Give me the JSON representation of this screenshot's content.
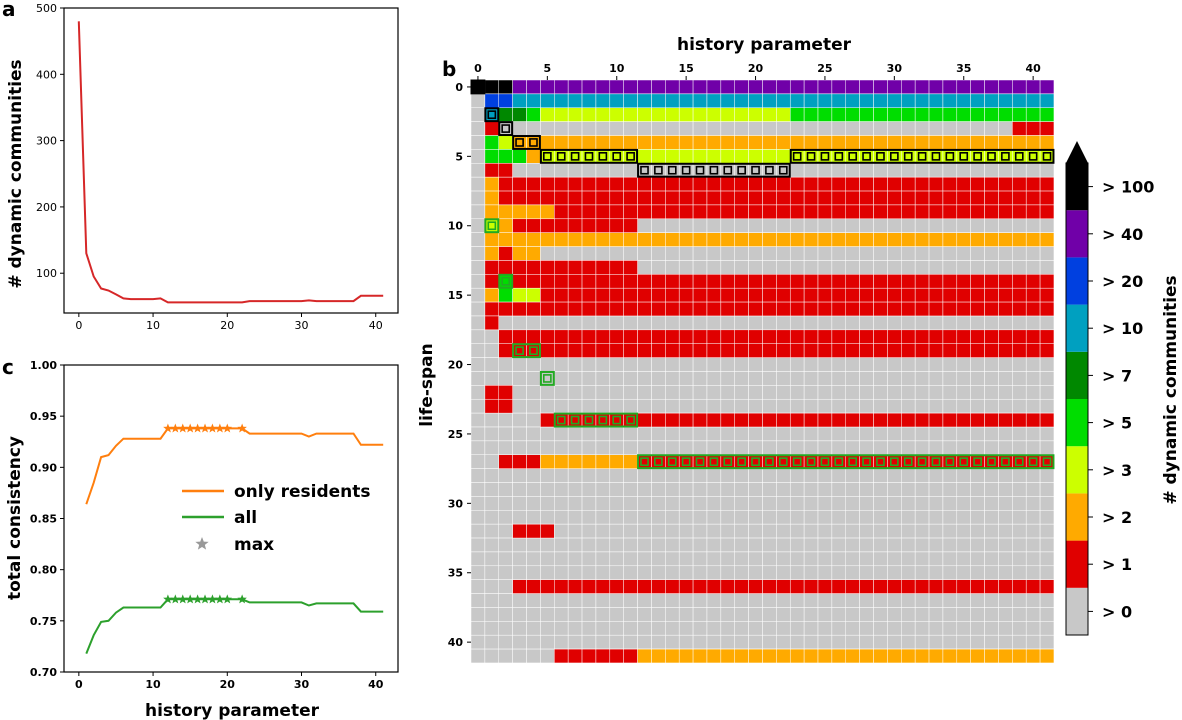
{
  "chart_data": [
    {
      "id": "a",
      "type": "line",
      "panel_label": "a",
      "xlabel": "",
      "ylabel": "# dynamic communities",
      "xlim": [
        -2,
        43
      ],
      "ylim": [
        40,
        500
      ],
      "xticks": [
        0,
        10,
        20,
        30,
        40
      ],
      "yticks": [
        100,
        200,
        300,
        400,
        500
      ],
      "series": [
        {
          "name": "# dynamic communities",
          "color": "#d62728",
          "x": [
            0,
            1,
            2,
            3,
            4,
            5,
            6,
            7,
            8,
            9,
            10,
            11,
            12,
            13,
            14,
            15,
            16,
            17,
            18,
            19,
            20,
            21,
            22,
            23,
            24,
            25,
            26,
            27,
            28,
            29,
            30,
            31,
            32,
            33,
            34,
            35,
            36,
            37,
            38,
            39,
            40,
            41
          ],
          "y": [
            480,
            130,
            95,
            77,
            74,
            68,
            62,
            61,
            61,
            61,
            61,
            62,
            56,
            56,
            56,
            56,
            56,
            56,
            56,
            56,
            56,
            56,
            56,
            58,
            58,
            58,
            58,
            58,
            58,
            58,
            58,
            59,
            58,
            58,
            58,
            58,
            58,
            58,
            66,
            66,
            66,
            66
          ]
        }
      ]
    },
    {
      "id": "c",
      "type": "line",
      "panel_label": "c",
      "xlabel": "history parameter",
      "ylabel": "total consistency",
      "xlim": [
        -2,
        43
      ],
      "ylim": [
        0.7,
        1.0
      ],
      "xticks": [
        0,
        10,
        20,
        30,
        40
      ],
      "yticks": [
        "0.70",
        "0.75",
        "0.80",
        "0.85",
        "0.90",
        "0.95",
        "1.00"
      ],
      "series": [
        {
          "name": "only residents",
          "color": "#ff7f0e",
          "x": [
            1,
            2,
            3,
            4,
            5,
            6,
            7,
            8,
            9,
            10,
            11,
            12,
            13,
            14,
            15,
            16,
            17,
            18,
            19,
            20,
            21,
            22,
            23,
            24,
            25,
            26,
            27,
            28,
            29,
            30,
            31,
            32,
            33,
            34,
            35,
            36,
            37,
            38,
            39,
            40,
            41
          ],
          "y": [
            0.864,
            0.885,
            0.91,
            0.912,
            0.921,
            0.928,
            0.928,
            0.928,
            0.928,
            0.928,
            0.928,
            0.938,
            0.938,
            0.938,
            0.938,
            0.938,
            0.938,
            0.938,
            0.938,
            0.938,
            0.938,
            0.938,
            0.933,
            0.933,
            0.933,
            0.933,
            0.933,
            0.933,
            0.933,
            0.933,
            0.93,
            0.933,
            0.933,
            0.933,
            0.933,
            0.933,
            0.933,
            0.922,
            0.922,
            0.922,
            0.922
          ]
        },
        {
          "name": "all",
          "color": "#2ca02c",
          "x": [
            1,
            2,
            3,
            4,
            5,
            6,
            7,
            8,
            9,
            10,
            11,
            12,
            13,
            14,
            15,
            16,
            17,
            18,
            19,
            20,
            21,
            22,
            23,
            24,
            25,
            26,
            27,
            28,
            29,
            30,
            31,
            32,
            33,
            34,
            35,
            36,
            37,
            38,
            39,
            40,
            41
          ],
          "y": [
            0.718,
            0.736,
            0.749,
            0.75,
            0.758,
            0.763,
            0.763,
            0.763,
            0.763,
            0.763,
            0.763,
            0.771,
            0.771,
            0.771,
            0.771,
            0.771,
            0.771,
            0.771,
            0.771,
            0.771,
            0.771,
            0.771,
            0.768,
            0.768,
            0.768,
            0.768,
            0.768,
            0.768,
            0.768,
            0.768,
            0.765,
            0.767,
            0.767,
            0.767,
            0.767,
            0.767,
            0.767,
            0.759,
            0.759,
            0.759,
            0.759
          ]
        }
      ],
      "max_markers": {
        "name": "max",
        "x": [
          12,
          13,
          14,
          15,
          16,
          17,
          18,
          19,
          20,
          22
        ],
        "only_residents_y": 0.938,
        "all_y": 0.771
      },
      "legend": [
        "only residents",
        "all",
        "max"
      ]
    },
    {
      "id": "b",
      "type": "heatmap",
      "panel_label": "b",
      "xlabel": "history parameter",
      "ylabel": "life-span",
      "n_cols": 42,
      "n_rows": 42,
      "xticks": [
        0,
        5,
        10,
        15,
        20,
        25,
        30,
        35,
        40
      ],
      "yticks": [
        0,
        5,
        10,
        15,
        20,
        25,
        30,
        35,
        40
      ],
      "colorbar": {
        "label": "# dynamic communities",
        "levels": [
          "> 0",
          "> 1",
          "> 2",
          "> 3",
          "> 5",
          "> 7",
          "> 10",
          "> 20",
          "> 40",
          "> 100"
        ],
        "colors": [
          "#c8c8c8",
          "#e00000",
          "#ffaa00",
          "#ccff00",
          "#00dd00",
          "#008800",
          "#00a0c0",
          "#0040e0",
          "#7000a8",
          "#000000"
        ],
        "extend": "max"
      },
      "segments": [
        [
          0,
          0,
          0,
          9
        ],
        [
          0,
          1,
          2,
          9
        ],
        [
          0,
          3,
          41,
          8
        ],
        [
          1,
          1,
          1,
          7
        ],
        [
          1,
          2,
          2,
          7
        ],
        [
          1,
          3,
          41,
          6
        ],
        [
          2,
          1,
          1,
          6
        ],
        [
          2,
          2,
          2,
          5
        ],
        [
          2,
          3,
          3,
          5
        ],
        [
          2,
          4,
          4,
          4
        ],
        [
          2,
          5,
          22,
          3
        ],
        [
          2,
          23,
          41,
          4
        ],
        [
          3,
          1,
          1,
          1
        ],
        [
          3,
          2,
          2,
          0
        ],
        [
          3,
          3,
          38,
          0
        ],
        [
          3,
          39,
          41,
          1
        ],
        [
          4,
          1,
          1,
          4
        ],
        [
          4,
          2,
          2,
          3
        ],
        [
          4,
          3,
          41,
          2
        ],
        [
          5,
          1,
          1,
          4
        ],
        [
          5,
          2,
          3,
          4
        ],
        [
          5,
          4,
          4,
          2
        ],
        [
          5,
          5,
          22,
          3
        ],
        [
          5,
          23,
          41,
          3
        ],
        [
          6,
          1,
          1,
          1
        ],
        [
          6,
          2,
          2,
          1
        ],
        [
          6,
          3,
          11,
          0
        ],
        [
          6,
          12,
          22,
          0
        ],
        [
          6,
          23,
          41,
          0
        ],
        [
          7,
          1,
          1,
          2
        ],
        [
          7,
          2,
          41,
          1
        ],
        [
          8,
          1,
          1,
          2
        ],
        [
          8,
          2,
          41,
          1
        ],
        [
          9,
          1,
          1,
          2
        ],
        [
          9,
          2,
          5,
          2
        ],
        [
          9,
          6,
          41,
          1
        ],
        [
          10,
          1,
          1,
          3
        ],
        [
          10,
          2,
          2,
          2
        ],
        [
          10,
          3,
          3,
          1
        ],
        [
          10,
          4,
          11,
          1
        ],
        [
          11,
          1,
          1,
          2
        ],
        [
          11,
          2,
          41,
          2
        ],
        [
          12,
          1,
          1,
          2
        ],
        [
          12,
          2,
          2,
          1
        ],
        [
          12,
          3,
          4,
          2
        ],
        [
          13,
          1,
          1,
          1
        ],
        [
          13,
          2,
          11,
          1
        ],
        [
          14,
          1,
          1,
          1
        ],
        [
          14,
          2,
          2,
          4
        ],
        [
          14,
          3,
          41,
          1
        ],
        [
          15,
          1,
          1,
          2
        ],
        [
          15,
          2,
          2,
          4
        ],
        [
          15,
          3,
          4,
          3
        ],
        [
          15,
          5,
          41,
          1
        ],
        [
          16,
          1,
          1,
          1
        ],
        [
          16,
          2,
          41,
          1
        ],
        [
          17,
          1,
          1,
          1
        ],
        [
          18,
          2,
          41,
          1
        ],
        [
          19,
          2,
          2,
          1
        ],
        [
          19,
          3,
          4,
          1
        ],
        [
          19,
          5,
          41,
          1
        ],
        [
          21,
          5,
          5,
          0
        ],
        [
          22,
          1,
          2,
          1
        ],
        [
          23,
          1,
          2,
          1
        ],
        [
          24,
          5,
          5,
          1
        ],
        [
          24,
          6,
          11,
          1
        ],
        [
          24,
          12,
          41,
          1
        ],
        [
          27,
          2,
          4,
          1
        ],
        [
          27,
          5,
          11,
          2
        ],
        [
          27,
          12,
          41,
          1
        ],
        [
          32,
          3,
          5,
          1
        ],
        [
          36,
          3,
          41,
          1
        ],
        [
          41,
          6,
          11,
          1
        ],
        [
          41,
          12,
          41,
          2
        ]
      ],
      "optimal_boxes": [
        {
          "row": 0,
          "col_start": 0,
          "col_end": 0,
          "color": "black"
        },
        {
          "row": 2,
          "col_start": 1,
          "col_end": 1,
          "color": "black"
        },
        {
          "row": 3,
          "col_start": 2,
          "col_end": 2,
          "color": "black"
        },
        {
          "row": 4,
          "col_start": 3,
          "col_end": 4,
          "color": "black"
        },
        {
          "row": 5,
          "col_start": 5,
          "col_end": 11,
          "color": "black"
        },
        {
          "row": 6,
          "col_start": 12,
          "col_end": 22,
          "color": "black"
        },
        {
          "row": 5,
          "col_start": 23,
          "col_end": 41,
          "color": "black"
        },
        {
          "row": 10,
          "col_start": 1,
          "col_end": 1,
          "color": "green"
        },
        {
          "row": 14,
          "col_start": 2,
          "col_end": 2,
          "color": "green"
        },
        {
          "row": 19,
          "col_start": 3,
          "col_end": 4,
          "color": "green"
        },
        {
          "row": 21,
          "col_start": 5,
          "col_end": 5,
          "color": "green"
        },
        {
          "row": 24,
          "col_start": 6,
          "col_end": 11,
          "color": "green"
        },
        {
          "row": 27,
          "col_start": 12,
          "col_end": 41,
          "color": "green"
        }
      ]
    }
  ]
}
